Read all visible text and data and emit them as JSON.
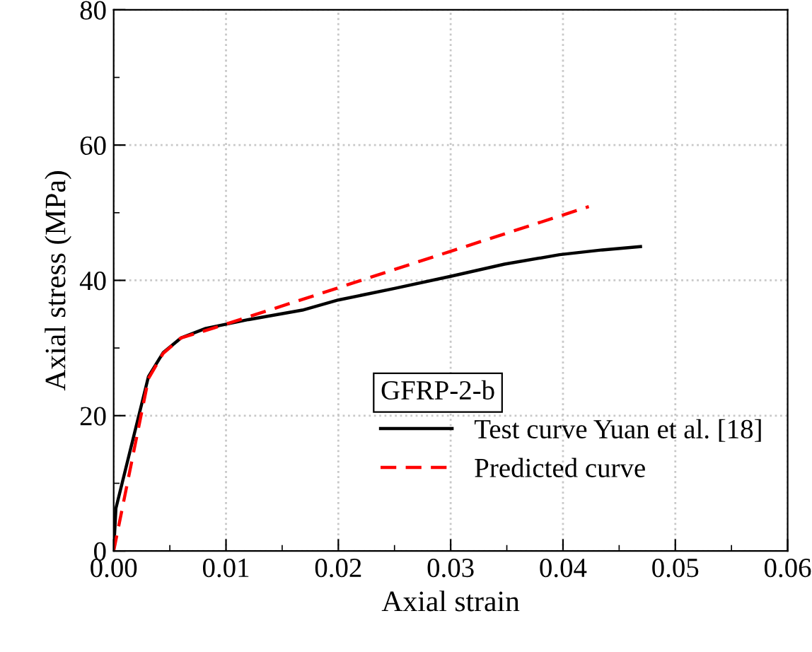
{
  "chart_data": {
    "type": "line",
    "xlabel": "Axial strain",
    "ylabel": "Axial stress (MPa)",
    "xlim": [
      0,
      0.06
    ],
    "xticks": [
      {
        "value": 0,
        "label": "0.00"
      },
      0.01,
      0.02,
      0.03,
      0.04,
      0.05,
      0.06
    ],
    "ylim": [
      0,
      80
    ],
    "yticks": [
      0,
      20,
      40,
      60,
      80
    ],
    "grid": true,
    "legend": "bottom right",
    "legend_title": "GFRP-2-b",
    "series": [
      {
        "name": "Test curve Yuan et al. [18]",
        "color": "#000000",
        "line_style": "solid",
        "x": [
          0,
          0.0002,
          0.0031,
          0.0044,
          0.006,
          0.0082,
          0.012,
          0.0168,
          0.02,
          0.025,
          0.03,
          0.0348,
          0.0397,
          0.0435,
          0.0469
        ],
        "values": [
          0,
          6.3,
          25.8,
          29.3,
          31.5,
          32.9,
          34.2,
          35.6,
          37.1,
          38.8,
          40.6,
          42.4,
          43.8,
          44.5,
          45.0
        ]
      },
      {
        "name": "Predicted curve",
        "color": "#ff0000",
        "line_style": "dashed",
        "x": [
          0,
          0.0031,
          0.0044,
          0.006,
          0.009,
          0.02,
          0.03,
          0.0423
        ],
        "values": [
          0,
          25.5,
          29.2,
          31.5,
          33.0,
          38.9,
          44.3,
          50.9
        ]
      }
    ]
  }
}
